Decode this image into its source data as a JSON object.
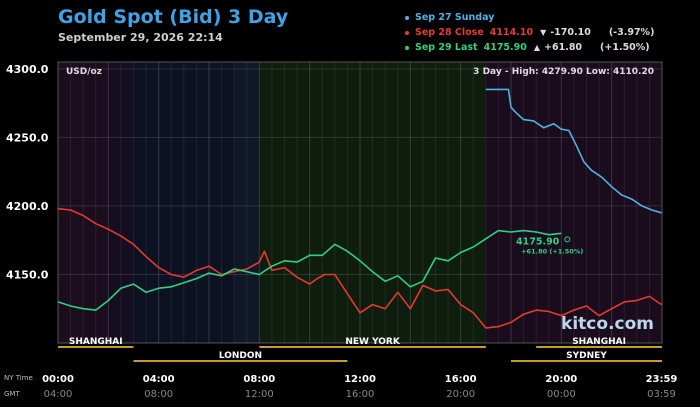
{
  "header": {
    "title": "Gold Spot (Bid) 3 Day",
    "subtitle": "September 29, 2026 22:14"
  },
  "legend": [
    {
      "label": "Sep 27 Sunday",
      "color": "#4fb3e2"
    },
    {
      "label": "Sep 28 Close",
      "value": "4114.10",
      "arrow": "▼",
      "change": "-170.10",
      "percent": "(-3.97%)",
      "color": "#e43b2e"
    },
    {
      "label": "Sep 29 Last",
      "value": "4175.90",
      "arrow": "▲",
      "change": "+61.80",
      "percent": "(+1.50%)",
      "color": "#2fd17f"
    }
  ],
  "chart_data": {
    "type": "line",
    "unit_label": "USD/oz",
    "stats_text": "3 Day - High: 4279.90  Low: 4110.20",
    "ylim": [
      4100,
      4305
    ],
    "yticks": [
      "4300.0",
      "4250.0",
      "4200.0",
      "4150.0"
    ],
    "ytick_values": [
      4300,
      4250,
      4200,
      4150
    ],
    "xlim": [
      0,
      24
    ],
    "xticks": [
      {
        "x": 0,
        "ny": "00:00",
        "gmt": "04:00"
      },
      {
        "x": 4,
        "ny": "04:00",
        "gmt": "08:00"
      },
      {
        "x": 8,
        "ny": "08:00",
        "gmt": "12:00"
      },
      {
        "x": 12,
        "ny": "12:00",
        "gmt": "16:00"
      },
      {
        "x": 16,
        "ny": "16:00",
        "gmt": "20:00"
      },
      {
        "x": 20,
        "ny": "20:00",
        "gmt": "00:00"
      },
      {
        "x": 23.98,
        "ny": "23:59",
        "gmt": "03:59"
      }
    ],
    "axis_row_labels": {
      "ny": "NY Time",
      "gmt": "GMT"
    },
    "sessions": [
      {
        "name": "SHANGHAI",
        "start": 0,
        "end": 3,
        "row": 1
      },
      {
        "name": "LONDON",
        "start": 3,
        "end": 11.5,
        "row": 2
      },
      {
        "name": "NEW YORK",
        "start": 8,
        "end": 17,
        "row": 1
      },
      {
        "name": "SHANGHAI",
        "start": 19,
        "end": 24,
        "row": 1
      },
      {
        "name": "SYDNEY",
        "start": 18,
        "end": 24,
        "row": 2
      }
    ],
    "background_bands": [
      {
        "start": 0,
        "end": 2,
        "color": "#1b0d1e"
      },
      {
        "start": 2,
        "end": 3,
        "color": "#150d20"
      },
      {
        "start": 3,
        "end": 7,
        "color": "#0d1223"
      },
      {
        "start": 7,
        "end": 8,
        "color": "#101827"
      },
      {
        "start": 8,
        "end": 17,
        "color": "#0f1d0f"
      },
      {
        "start": 17,
        "end": 24,
        "color": "#1a0c1d"
      }
    ],
    "series": [
      {
        "name": "Sep 27 Sunday",
        "color": "#4fb3e2",
        "x": [
          17.0,
          17.4,
          17.9,
          18.0,
          18.2,
          18.5,
          18.9,
          19.3,
          19.7,
          20.0,
          20.3,
          20.6,
          20.9,
          21.2,
          21.6,
          22.0,
          22.4,
          22.8,
          23.2,
          23.6,
          23.98
        ],
        "y": [
          4285,
          4285,
          4285,
          4272,
          4268,
          4263,
          4262,
          4257,
          4260,
          4256,
          4255,
          4244,
          4232,
          4226,
          4221,
          4214,
          4208,
          4205,
          4200,
          4197,
          4195
        ]
      },
      {
        "name": "Sep 28 Close",
        "color": "#e43b2e",
        "x": [
          0,
          0.5,
          1,
          1.5,
          2,
          2.5,
          3,
          3.5,
          4,
          4.5,
          5,
          5.5,
          6,
          6.5,
          7,
          7.5,
          8,
          8.2,
          8.5,
          9,
          9.5,
          10,
          10.3,
          10.6,
          11,
          11.5,
          12,
          12.5,
          13,
          13.5,
          14,
          14.5,
          15,
          15.5,
          16,
          16.5,
          17,
          17.5,
          18,
          18.5,
          19,
          19.5,
          20,
          20.5,
          21,
          21.5,
          22,
          22.5,
          23,
          23.5,
          23.98
        ],
        "y": [
          4198,
          4197,
          4193,
          4187,
          4183,
          4178,
          4172,
          4163,
          4155,
          4150,
          4148,
          4153,
          4156,
          4150,
          4152,
          4154,
          4159,
          4167,
          4153,
          4155,
          4148,
          4143,
          4147,
          4150,
          4150,
          4136,
          4122,
          4128,
          4125,
          4137,
          4125,
          4142,
          4138,
          4139,
          4128,
          4122,
          4111,
          4112,
          4115,
          4121,
          4124,
          4123,
          4120,
          4124,
          4127,
          4120,
          4125,
          4130,
          4131,
          4134,
          4128
        ]
      },
      {
        "name": "Sep 29 Last",
        "color": "#2fd17f",
        "x": [
          0,
          0.5,
          1,
          1.5,
          2,
          2.5,
          3,
          3.5,
          4,
          4.5,
          5,
          5.5,
          6,
          6.5,
          7,
          7.5,
          8,
          8.5,
          9,
          9.5,
          10,
          10.5,
          11,
          11.5,
          12,
          12.5,
          13,
          13.5,
          14,
          14.5,
          15,
          15.5,
          16,
          16.5,
          17,
          17.5,
          18,
          18.5,
          19,
          19.5,
          20
        ],
        "y": [
          4130,
          4127,
          4125,
          4124,
          4131,
          4140,
          4143,
          4137,
          4140,
          4141,
          4144,
          4147,
          4151,
          4149,
          4154,
          4152,
          4150,
          4156,
          4160,
          4159,
          4164,
          4164,
          4172,
          4167,
          4160,
          4152,
          4145,
          4149,
          4141,
          4145,
          4162,
          4160,
          4166,
          4170,
          4176,
          4182,
          4181,
          4182,
          4181,
          4179,
          4180
        ]
      }
    ],
    "annotation": {
      "value": "4175.90",
      "detail": "+61.80 (+1.50%)",
      "x": 20,
      "y": 4180
    },
    "watermark": "kitco.com"
  }
}
